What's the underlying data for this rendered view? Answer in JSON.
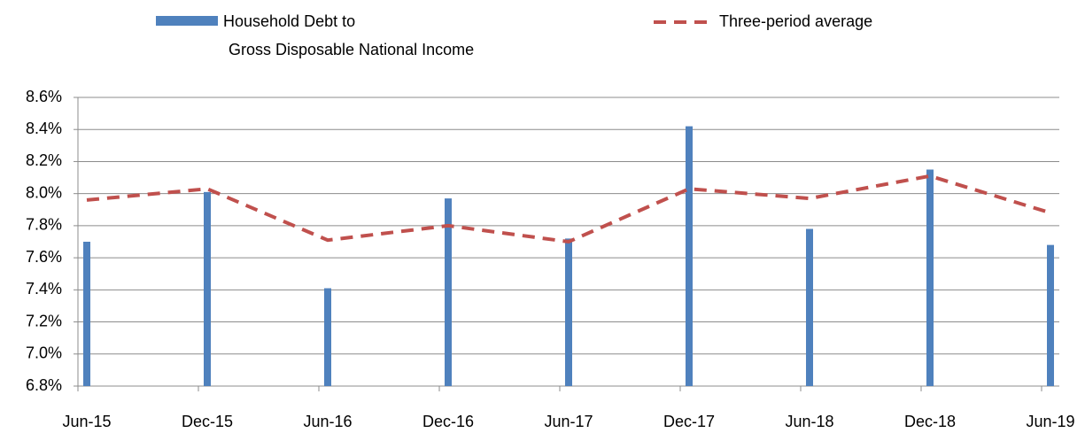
{
  "chart_data": {
    "type": "bar",
    "categories": [
      "Jun-15",
      "Dec-15",
      "Jun-16",
      "Dec-16",
      "Jun-17",
      "Dec-17",
      "Jun-18",
      "Dec-18",
      "Jun-19"
    ],
    "series": [
      {
        "name": "Household Debt to Gross Disposable National Income",
        "type": "bar",
        "color": "#4f81bd",
        "values": [
          7.7,
          8.01,
          7.41,
          7.97,
          7.72,
          8.42,
          7.78,
          8.15,
          7.68
        ]
      },
      {
        "name": "Three-period average",
        "type": "line",
        "style": "dashed",
        "color": "#c0504d",
        "values": [
          7.96,
          8.03,
          7.71,
          7.8,
          7.7,
          8.03,
          7.97,
          8.11,
          7.88
        ]
      }
    ],
    "ylim": [
      6.8,
      8.6
    ],
    "yticks": [
      {
        "value": 6.8,
        "label": "6.8%"
      },
      {
        "value": 7.0,
        "label": "7.0%"
      },
      {
        "value": 7.2,
        "label": "7.2%"
      },
      {
        "value": 7.4,
        "label": "7.4%"
      },
      {
        "value": 7.6,
        "label": "7.6%"
      },
      {
        "value": 7.8,
        "label": "7.8%"
      },
      {
        "value": 8.0,
        "label": "8.0%"
      },
      {
        "value": 8.2,
        "label": "8.2%"
      },
      {
        "value": 8.4,
        "label": "8.4%"
      },
      {
        "value": 8.6,
        "label": "8.6%"
      }
    ],
    "grid": true
  }
}
